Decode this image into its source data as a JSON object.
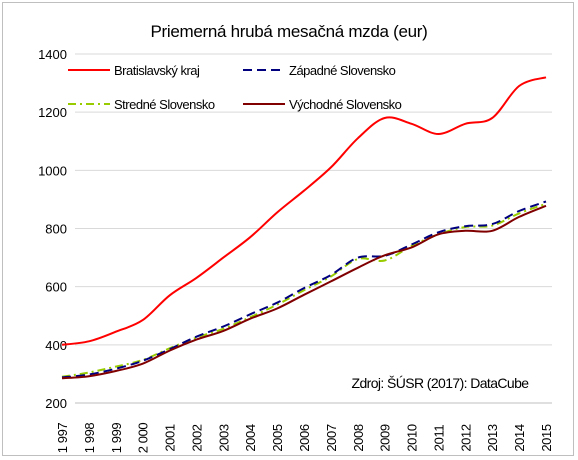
{
  "chart_data": {
    "type": "line",
    "title": "Priemerná hrubá mesačná mzda (eur)",
    "source_note": "Zdroj: ŠÚSR (2017): DataCube",
    "xlabel": "",
    "ylabel": "",
    "ylim": [
      200,
      1400
    ],
    "yticks": [
      200,
      400,
      600,
      800,
      1000,
      1200,
      1400
    ],
    "categories": [
      "1 997",
      "1 998",
      "1 999",
      "2 000",
      "2001",
      "2002",
      "2003",
      "2004",
      "2005",
      "2006",
      "2007",
      "2008",
      "2009",
      "2010",
      "2011",
      "2012",
      "2013",
      "2014",
      "2015"
    ],
    "grid": true,
    "legend_position": "top",
    "series": [
      {
        "name": "Bratislavský kraj",
        "color": "#ff0000",
        "dash": "solid",
        "values": [
          400,
          412,
          445,
          485,
          570,
          630,
          700,
          770,
          855,
          930,
          1010,
          1110,
          1180,
          1160,
          1125,
          1160,
          1180,
          1290,
          1320
        ]
      },
      {
        "name": "Západné Slovensko",
        "color": "#00007f",
        "dash": "dash",
        "values": [
          288,
          298,
          318,
          345,
          385,
          428,
          463,
          505,
          545,
          595,
          640,
          700,
          706,
          745,
          787,
          808,
          815,
          860,
          893
        ]
      },
      {
        "name": "Stredné Slovensko",
        "color": "#99cc00",
        "dash": "dashdot",
        "values": [
          290,
          305,
          325,
          348,
          388,
          425,
          455,
          495,
          538,
          588,
          635,
          695,
          690,
          740,
          780,
          805,
          810,
          852,
          885
        ]
      },
      {
        "name": "Východné Slovensko",
        "color": "#800000",
        "dash": "solid",
        "values": [
          285,
          292,
          310,
          335,
          380,
          418,
          448,
          490,
          525,
          572,
          618,
          665,
          708,
          735,
          780,
          792,
          792,
          840,
          878
        ]
      }
    ]
  }
}
